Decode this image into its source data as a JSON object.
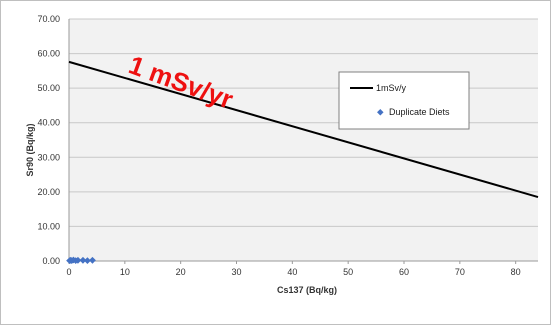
{
  "chart_data": {
    "type": "scatter",
    "xlabel": "Cs137 (Bq/kg)",
    "ylabel": "Sr90 (Bq/kg)",
    "xlim": [
      0,
      84
    ],
    "ylim": [
      0,
      70
    ],
    "x_ticks": [
      "0",
      "10",
      "20",
      "30",
      "40",
      "50",
      "60",
      "70",
      "80"
    ],
    "y_ticks": [
      "0.00",
      "10.00",
      "20.00",
      "30.00",
      "40.00",
      "50.00",
      "60.00",
      "70.00"
    ],
    "grid": "horizontal",
    "legend_position": "right",
    "annotation": {
      "text": "1 mSv/yr",
      "color": "#ee1111"
    },
    "series": [
      {
        "name": "1mSv/y",
        "kind": "line",
        "color": "#000000",
        "x": [
          0,
          84
        ],
        "y": [
          57.6,
          18.5
        ]
      },
      {
        "name": "Duplicate Diets",
        "kind": "scatter",
        "color": "#4472c4",
        "x": [
          0.1,
          0.3,
          0.5,
          0.8,
          1.2,
          1.6,
          2.5,
          3.3,
          4.2
        ],
        "y": [
          0.1,
          0.2,
          0.1,
          0.3,
          0.1,
          0.2,
          0.2,
          0.1,
          0.2
        ]
      }
    ]
  }
}
